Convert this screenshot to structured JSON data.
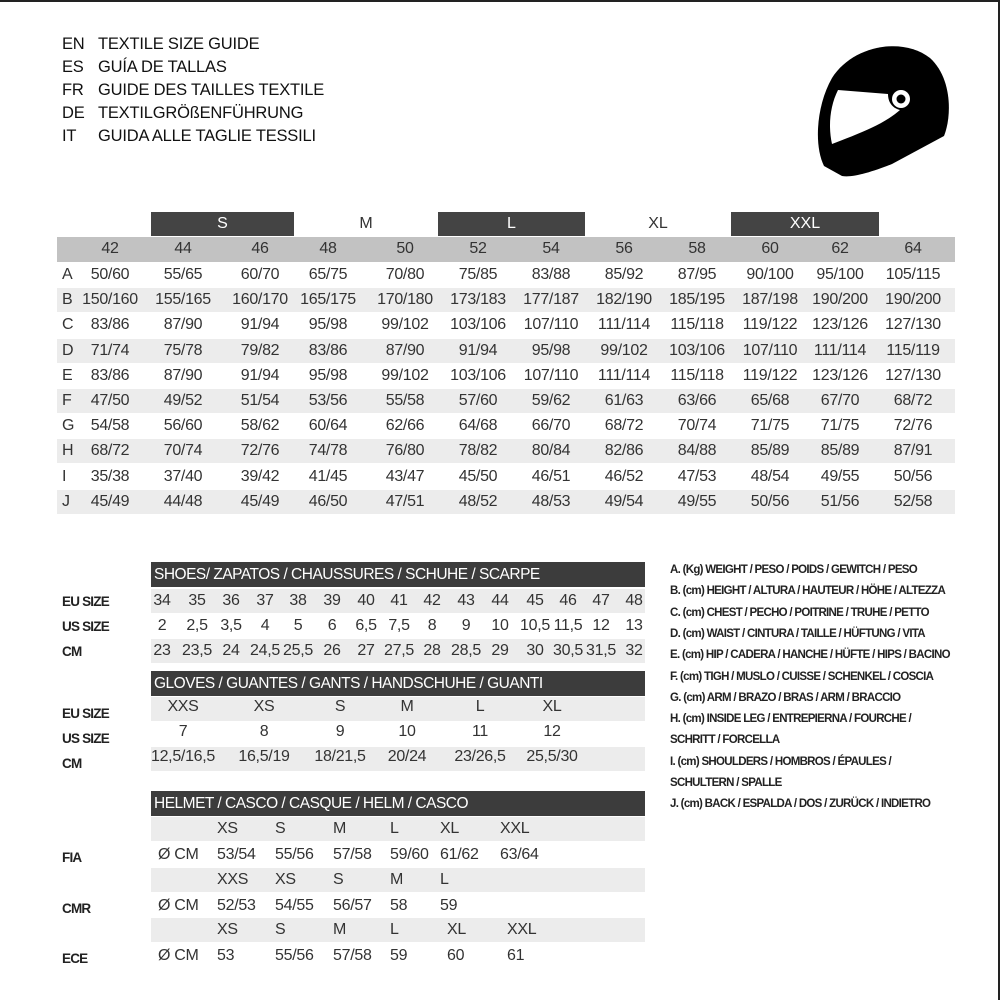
{
  "titles": [
    {
      "code": "EN",
      "text": "TEXTILE SIZE GUIDE"
    },
    {
      "code": "ES",
      "text": "GUÍA DE TALLAS"
    },
    {
      "code": "FR",
      "text": "GUIDE DES TAILLES TEXTILE"
    },
    {
      "code": "DE",
      "text": "TEXTILGRÖßENFÜHRUNG"
    },
    {
      "code": "IT",
      "text": "GUIDA ALLE TAGLIE TESSILI"
    }
  ],
  "logo_icon": "helmet-icon",
  "colors": {
    "dark_band": "#444444",
    "header_grey": "#c2c2c2",
    "stripe": "#ececec"
  },
  "textile": {
    "size_bands": [
      "S",
      "M",
      "L",
      "XL",
      "XXL"
    ],
    "sizes": [
      "42",
      "44",
      "46",
      "48",
      "50",
      "52",
      "54",
      "56",
      "58",
      "60",
      "62",
      "64"
    ],
    "rows": [
      {
        "label": "A",
        "values": [
          "50/60",
          "55/65",
          "60/70",
          "65/75",
          "70/80",
          "75/85",
          "83/88",
          "85/92",
          "87/95",
          "90/100",
          "95/100",
          "105/115"
        ]
      },
      {
        "label": "B",
        "values": [
          "150/160",
          "155/165",
          "160/170",
          "165/175",
          "170/180",
          "173/183",
          "177/187",
          "182/190",
          "185/195",
          "187/198",
          "190/200",
          "190/200"
        ]
      },
      {
        "label": "C",
        "values": [
          "83/86",
          "87/90",
          "91/94",
          "95/98",
          "99/102",
          "103/106",
          "107/110",
          "111/114",
          "115/118",
          "119/122",
          "123/126",
          "127/130"
        ]
      },
      {
        "label": "D",
        "values": [
          "71/74",
          "75/78",
          "79/82",
          "83/86",
          "87/90",
          "91/94",
          "95/98",
          "99/102",
          "103/106",
          "107/110",
          "111/114",
          "115/119"
        ]
      },
      {
        "label": "E",
        "values": [
          "83/86",
          "87/90",
          "91/94",
          "95/98",
          "99/102",
          "103/106",
          "107/110",
          "111/114",
          "115/118",
          "119/122",
          "123/126",
          "127/130"
        ]
      },
      {
        "label": "F",
        "values": [
          "47/50",
          "49/52",
          "51/54",
          "53/56",
          "55/58",
          "57/60",
          "59/62",
          "61/63",
          "63/66",
          "65/68",
          "67/70",
          "68/72"
        ]
      },
      {
        "label": "G",
        "values": [
          "54/58",
          "56/60",
          "58/62",
          "60/64",
          "62/66",
          "64/68",
          "66/70",
          "68/72",
          "70/74",
          "71/75",
          "71/75",
          "72/76"
        ]
      },
      {
        "label": "H",
        "values": [
          "68/72",
          "70/74",
          "72/76",
          "74/78",
          "76/80",
          "78/82",
          "80/84",
          "82/86",
          "84/88",
          "85/89",
          "85/89",
          "87/91"
        ]
      },
      {
        "label": "I",
        "values": [
          "35/38",
          "37/40",
          "39/42",
          "41/45",
          "43/47",
          "45/50",
          "46/51",
          "46/52",
          "47/53",
          "48/54",
          "49/55",
          "50/56"
        ]
      },
      {
        "label": "J",
        "values": [
          "45/49",
          "44/48",
          "45/49",
          "46/50",
          "47/51",
          "48/52",
          "48/53",
          "49/54",
          "49/55",
          "50/56",
          "51/56",
          "52/58"
        ]
      }
    ]
  },
  "shoes": {
    "title": "SHOES/ ZAPATOS / CHAUSSURES / SCHUHE / SCARPE",
    "rows": [
      {
        "label": "EU SIZE",
        "values": [
          "34",
          "35",
          "36",
          "37",
          "38",
          "39",
          "40",
          "41",
          "42",
          "43",
          "44",
          "45",
          "46",
          "47",
          "48"
        ]
      },
      {
        "label": "US SIZE",
        "values": [
          "2",
          "2,5",
          "3,5",
          "4",
          "5",
          "6",
          "6,5",
          "7,5",
          "8",
          "9",
          "10",
          "10,5",
          "11,5",
          "12",
          "13"
        ]
      },
      {
        "label": "CM",
        "values": [
          "23",
          "23,5",
          "24",
          "24,5",
          "25,5",
          "26",
          "27",
          "27,5",
          "28",
          "28,5",
          "29",
          "30",
          "30,5",
          "31,5",
          "32"
        ]
      }
    ]
  },
  "gloves": {
    "title": "GLOVES / GUANTES / GANTS / HANDSCHUHE / GUANTI",
    "rows": [
      {
        "label": "EU SIZE",
        "values": [
          "XXS",
          "XS",
          "S",
          "M",
          "L",
          "XL"
        ]
      },
      {
        "label": "US SIZE",
        "values": [
          "7",
          "8",
          "9",
          "10",
          "11",
          "12"
        ]
      },
      {
        "label": "CM",
        "values": [
          "12,5/16,5",
          "16,5/19",
          "18/21,5",
          "20/24",
          "23/26,5",
          "25,5/30"
        ]
      }
    ]
  },
  "helmet": {
    "title": "HELMET / CASCO / CASQUE / HELM / CASCO",
    "unit": "Ø CM",
    "standards": [
      {
        "label": "FIA",
        "sizes": [
          "XS",
          "S",
          "M",
          "L",
          "XL",
          "XXL"
        ],
        "values": [
          "53/54",
          "55/56",
          "57/58",
          "59/60",
          "61/62",
          "63/64"
        ]
      },
      {
        "label": "CMR",
        "sizes": [
          "XXS",
          "XS",
          "S",
          "M",
          "L"
        ],
        "values": [
          "52/53",
          "54/55",
          "56/57",
          "58",
          "59"
        ]
      },
      {
        "label": "ECE",
        "sizes": [
          "XS",
          "S",
          "M",
          "L",
          "XL",
          "XXL"
        ],
        "values": [
          "53",
          "55/56",
          "57/58",
          "59",
          "60",
          "61"
        ]
      }
    ]
  },
  "legend": [
    "A. (Kg) WEIGHT / PESO / POIDS / GEWITCH / PESO",
    "B. (cm) HEIGHT / ALTURA / HAUTEUR / HÖHE / ALTEZZA",
    "C. (cm) CHEST / PECHO / POITRINE / TRUHE / PETTO",
    "D. (cm) WAIST / CINTURA / TAILLE / HÜFTUNG / VITA",
    "E. (cm) HIP / CADERA / HANCHE / HÜFTE / HIPS /  BACINO",
    "F.  (cm) TIGH / MUSLO / CUISSE / SCHENKEL / COSCIA",
    "G. (cm) ARM  / BRAZO / BRAS / ARM / BRACCIO",
    "H. (cm) INSIDE LEG / ENTREPIERNA / FOURCHE /",
    "SCHRITT / FORCELLA",
    "I.  (cm) SHOULDERS / HOMBROS / ÉPAULES /",
    "SCHULTERN / SPALLE",
    "J. (cm) BACK / ESPALDA / DOS / ZURÜCK / INDIETRO"
  ]
}
